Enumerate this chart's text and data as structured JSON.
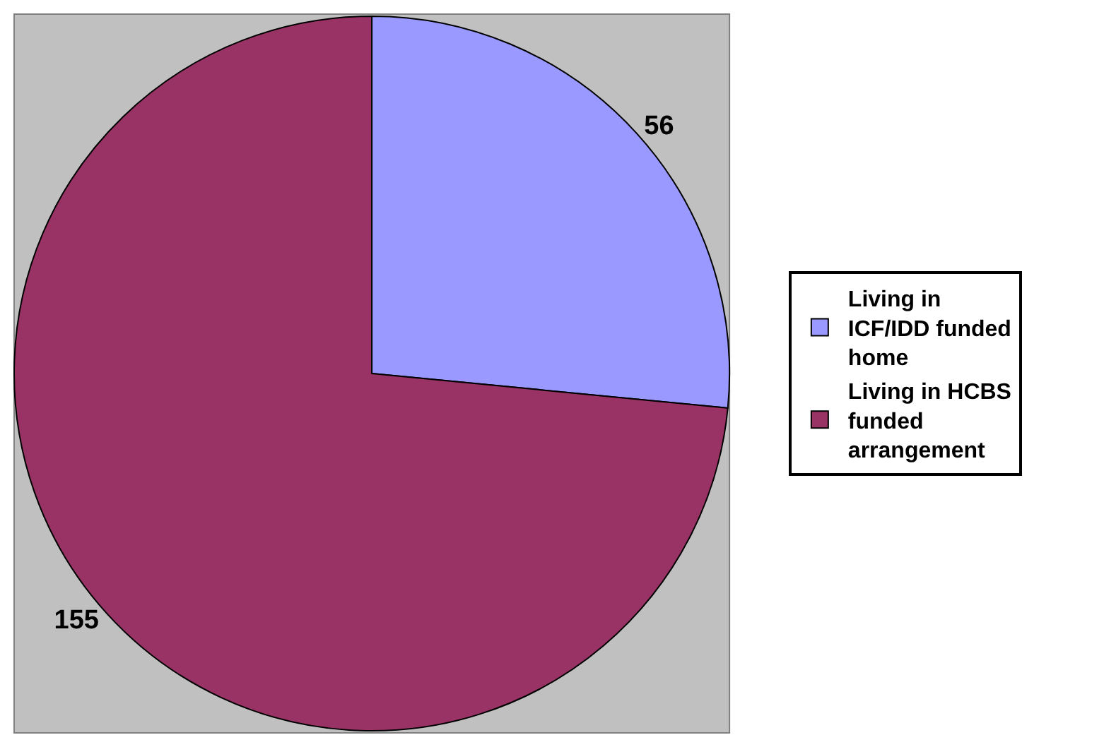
{
  "chart_data": {
    "type": "pie",
    "categories": [
      "Living in ICF/IDD funded home",
      "Living in HCBS funded arrangement"
    ],
    "values": [
      56,
      155
    ],
    "colors": [
      "#9999ff",
      "#993366"
    ],
    "data_labels": true,
    "legend": "right"
  }
}
